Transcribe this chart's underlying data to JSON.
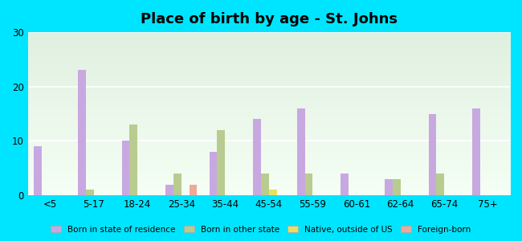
{
  "title": "Place of birth by age - St. Johns",
  "categories": [
    "<5",
    "5-17",
    "18-24",
    "25-34",
    "35-44",
    "45-54",
    "55-59",
    "60-61",
    "62-64",
    "65-74",
    "75+"
  ],
  "series": {
    "Born in state of residence": [
      9,
      23,
      10,
      2,
      8,
      14,
      16,
      4,
      3,
      15,
      16
    ],
    "Born in other state": [
      0,
      1,
      13,
      4,
      12,
      4,
      4,
      0,
      3,
      4,
      0
    ],
    "Native, outside of US": [
      0,
      0,
      0,
      0,
      0,
      1,
      0,
      0,
      0,
      0,
      0
    ],
    "Foreign-born": [
      0,
      0,
      0,
      2,
      0,
      0,
      0,
      0,
      0,
      0,
      0
    ]
  },
  "colors": {
    "Born in state of residence": "#c8a8e0",
    "Born in other state": "#b8cc90",
    "Native, outside of US": "#e8e060",
    "Foreign-born": "#f0a898"
  },
  "ylim": [
    0,
    30
  ],
  "yticks": [
    0,
    10,
    20,
    30
  ],
  "bg_bottom": "#f5fff5",
  "bg_top": "#e0f0e0",
  "fig_bg": "#00e5ff",
  "bar_width": 0.18,
  "legend_labels": [
    "Born in state of residence",
    "Born in other state",
    "Native, outside of US",
    "Foreign-born"
  ]
}
